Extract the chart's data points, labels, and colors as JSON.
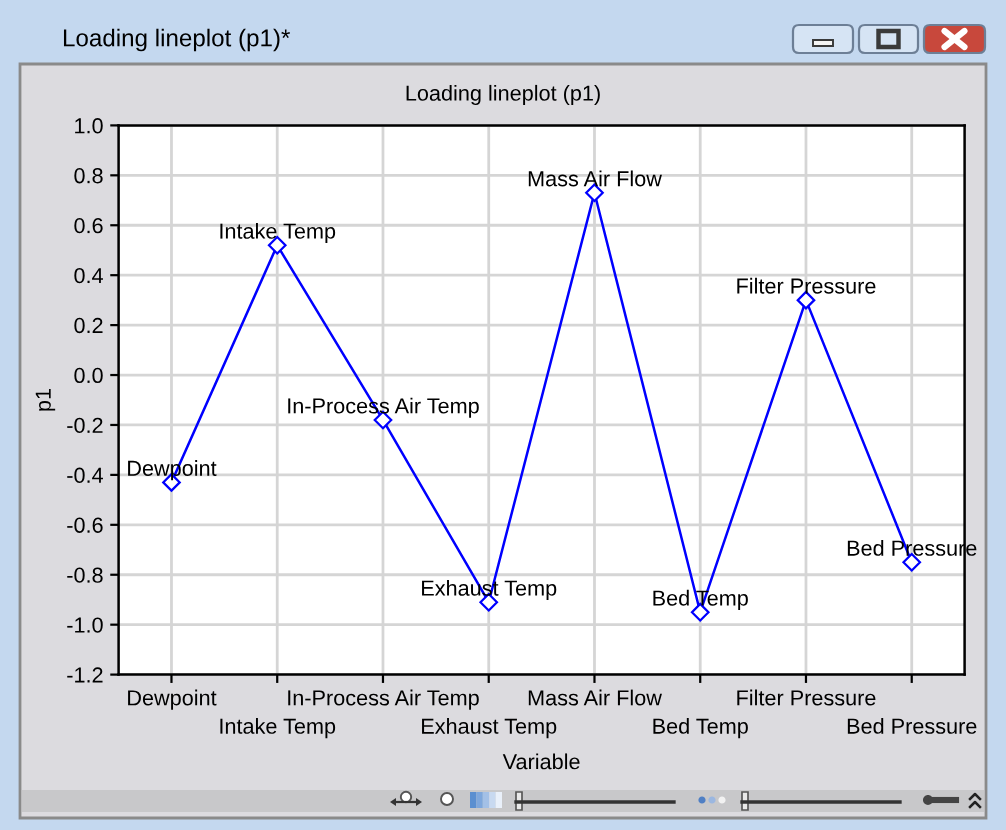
{
  "chart_data": {
    "type": "line",
    "title": "Loading lineplot (p1)",
    "xlabel": "Variable",
    "ylabel": "p1",
    "annotations": [
      "Loading lineplot (p1)*"
    ],
    "categories": [
      "Dewpoint",
      "Intake Temp",
      "In-Process Air Temp",
      "Exhaust Temp",
      "Mass Air Flow",
      "Bed Temp",
      "Filter Pressure",
      "Bed Pressure"
    ],
    "series": [
      {
        "color": "#0000ff",
        "values": [
          -0.43,
          0.52,
          -0.18,
          -0.91,
          0.73,
          -0.95,
          0.3,
          -0.75
        ],
        "value_labels": [
          "Dewpoint",
          "Intake Temp",
          "In-Process Air Temp",
          "Exhaust Temp",
          "Mass Air Flow",
          "Bed Temp",
          "Filter Pressure",
          "Bed Pressure"
        ]
      }
    ],
    "ylim": [
      -1.2,
      1.0
    ],
    "yticks": [
      {
        "value": -1.2,
        "label": "-1.2"
      },
      {
        "value": -1.0,
        "label": "-1.0"
      },
      {
        "value": -0.8,
        "label": "-0.8"
      },
      {
        "value": -0.6,
        "label": "-0.6"
      },
      {
        "value": -0.4,
        "label": "-0.4"
      },
      {
        "value": -0.2,
        "label": "-0.2"
      },
      {
        "value": 0.0,
        "label": "0.0"
      },
      {
        "value": 0.2,
        "label": "0.2"
      },
      {
        "value": 0.4,
        "label": "0.4"
      },
      {
        "value": 0.6,
        "label": "0.6"
      },
      {
        "value": 0.8,
        "label": "0.8"
      },
      {
        "value": 1.0,
        "label": "1.0"
      }
    ],
    "grid": true,
    "marker": "diamond",
    "line_style": "solid"
  }
}
